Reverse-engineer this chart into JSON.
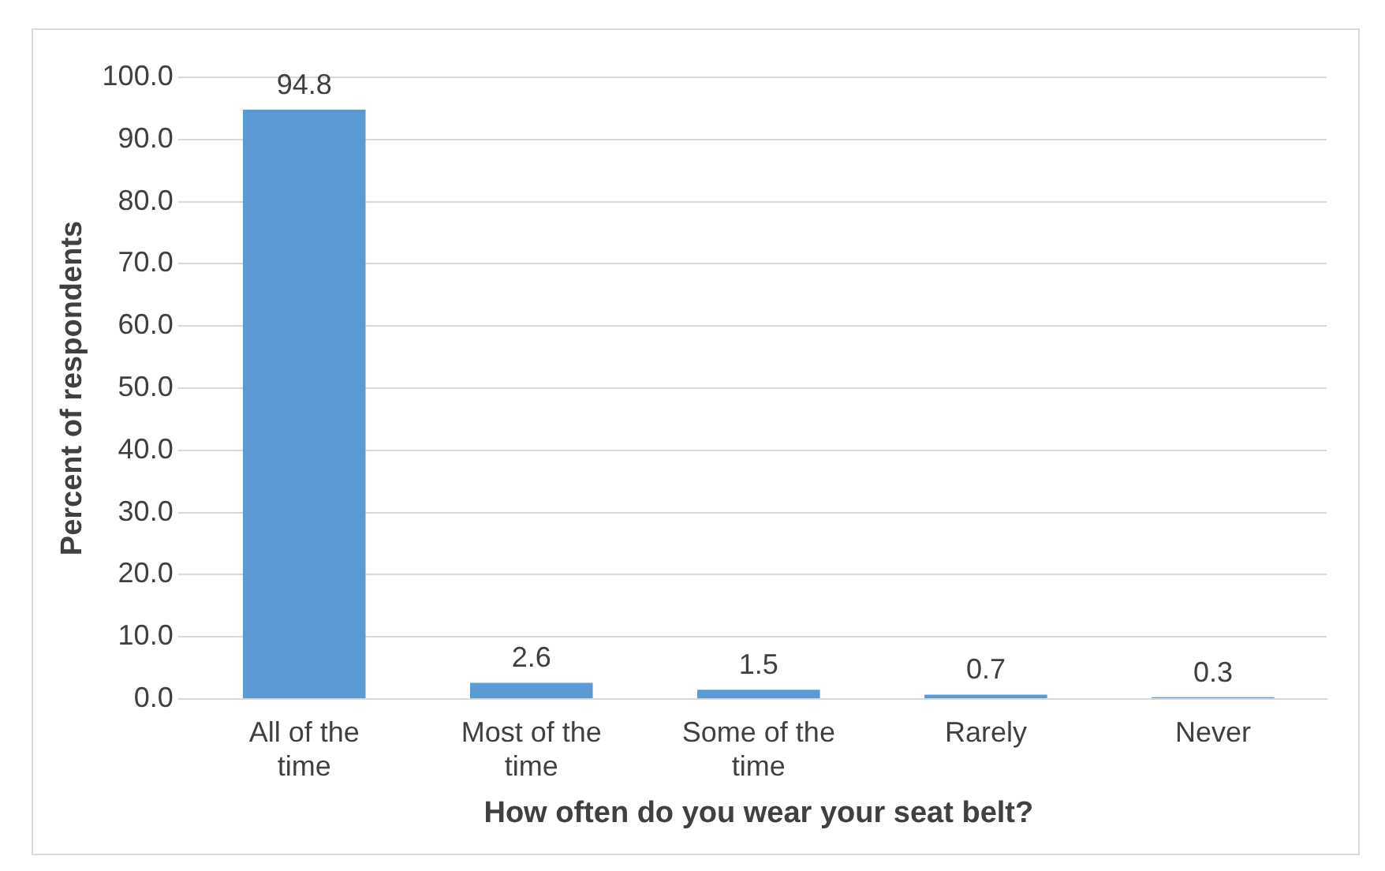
{
  "chart_data": {
    "type": "bar",
    "xlabel": "How often do you wear your seat belt?",
    "ylabel": "Percent of respondents",
    "categories": [
      "All of the time",
      "Most of the time",
      "Some of the time",
      "Rarely",
      "Never"
    ],
    "values": [
      94.8,
      2.6,
      1.5,
      0.7,
      0.3
    ],
    "color": "#5b9bd5",
    "ylim": [
      0,
      100
    ],
    "yticks": [
      {
        "value": 0,
        "label": "0.0"
      },
      {
        "value": 10,
        "label": "10.0"
      },
      {
        "value": 20,
        "label": "20.0"
      },
      {
        "value": 30,
        "label": "30.0"
      },
      {
        "value": 40,
        "label": "40.0"
      },
      {
        "value": 50,
        "label": "50.0"
      },
      {
        "value": 60,
        "label": "60.0"
      },
      {
        "value": 70,
        "label": "70.0"
      },
      {
        "value": 80,
        "label": "80.0"
      },
      {
        "value": 90,
        "label": "90.0"
      },
      {
        "value": 100,
        "label": "100.0"
      }
    ],
    "grid": "y",
    "data_labels": true,
    "legend": false
  }
}
